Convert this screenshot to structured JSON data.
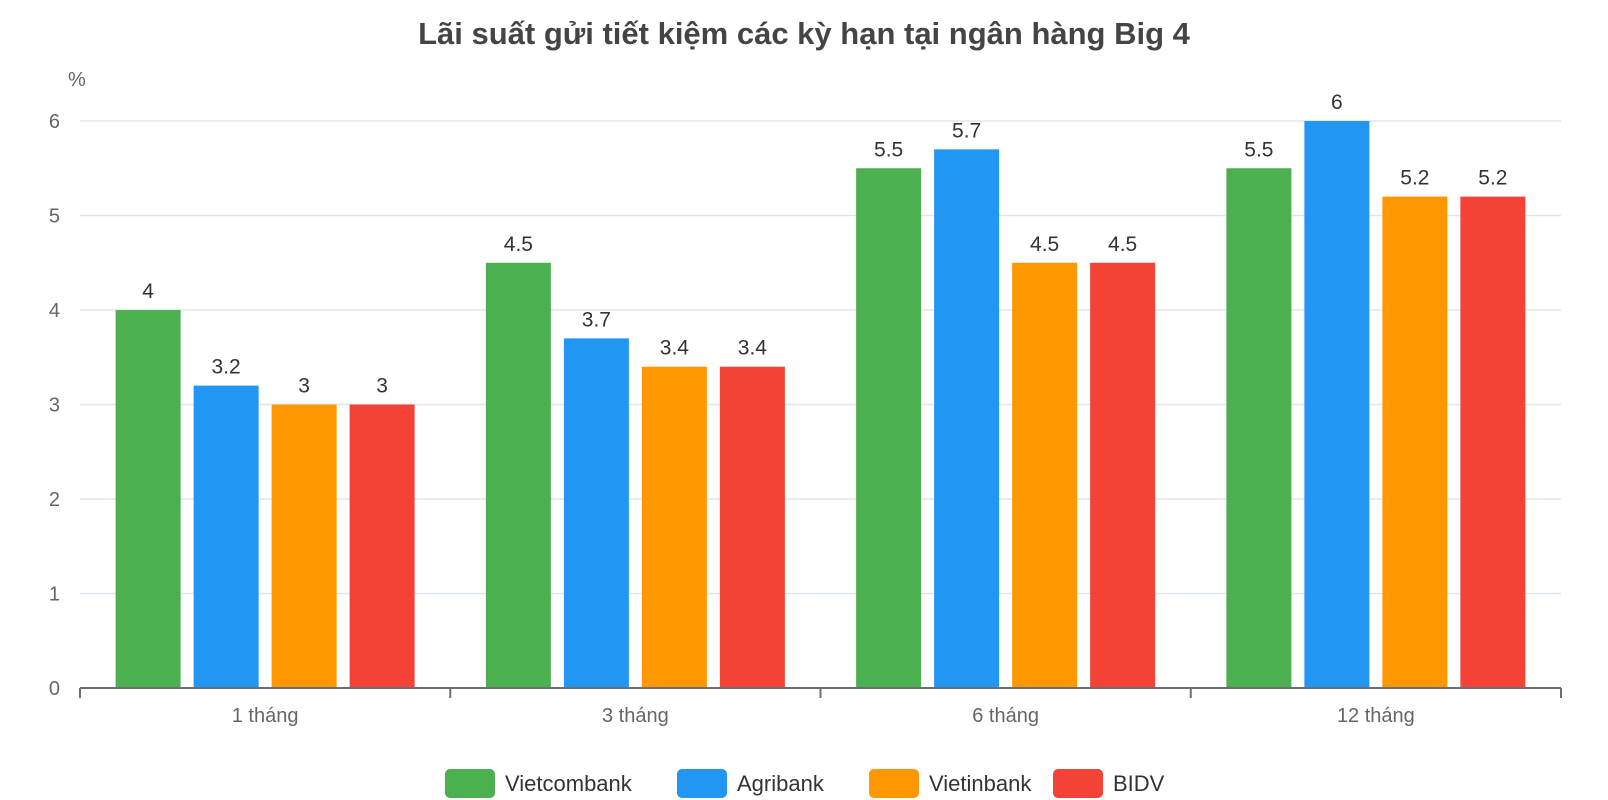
{
  "chart_data": {
    "type": "bar",
    "title": "Lãi suất gửi tiết kiệm các kỳ hạn tại ngân hàng Big 4",
    "ylabel": "%",
    "xlabel": "",
    "categories": [
      "1 tháng",
      "3 tháng",
      "6 tháng",
      "12 tháng"
    ],
    "ylim": [
      0,
      6
    ],
    "yticks": [
      0,
      1,
      2,
      3,
      4,
      5,
      6
    ],
    "grid": true,
    "legend_position": "bottom",
    "series": [
      {
        "name": "Vietcombank",
        "color": "#4caf50",
        "values": [
          4,
          4.5,
          5.5,
          5.5
        ]
      },
      {
        "name": "Agribank",
        "color": "#2196f3",
        "values": [
          3.2,
          3.7,
          5.7,
          6
        ]
      },
      {
        "name": "Vietinbank",
        "color": "#ff9800",
        "values": [
          3,
          3.4,
          4.5,
          5.2
        ]
      },
      {
        "name": "BIDV",
        "color": "#f44336",
        "values": [
          3,
          3.4,
          4.5,
          5.2
        ]
      }
    ]
  }
}
